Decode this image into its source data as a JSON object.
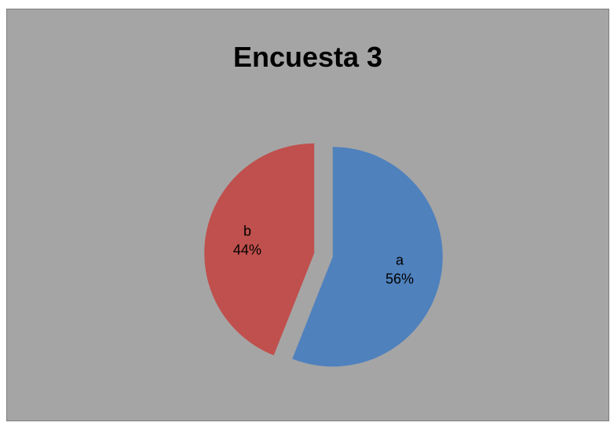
{
  "chart_data": {
    "type": "pie",
    "title": "Encuesta 3",
    "slices": [
      {
        "label": "a",
        "value": 56,
        "percent_label": "56%",
        "color": "#4f81bd"
      },
      {
        "label": "b",
        "value": 44,
        "percent_label": "44%",
        "color": "#c0504d"
      }
    ],
    "legend": "none"
  },
  "colors": {
    "chart_background": "#a5a5a5",
    "border": "#7f7f7f"
  }
}
